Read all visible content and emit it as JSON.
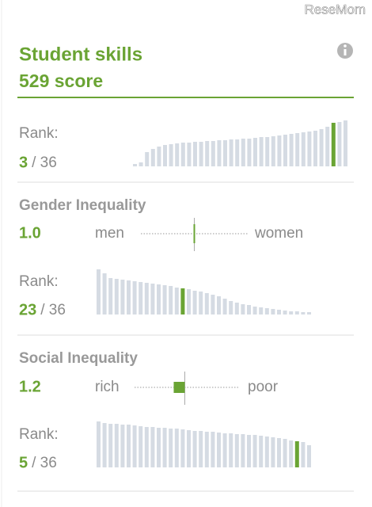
{
  "watermark": "ReseMom",
  "header": {
    "title": "Student skills",
    "score": "529 score"
  },
  "bar_color": "#d5dbe3",
  "highlight_color": "#6aa434",
  "sections": [
    {
      "rank_label": "Rank:",
      "rank": 3,
      "rank_total": "/ 36",
      "highlight": 33,
      "bars": [
        3,
        5,
        18,
        22,
        25,
        27,
        28,
        29,
        30,
        30,
        31,
        31,
        32,
        32,
        33,
        33,
        34,
        34,
        35,
        35,
        36,
        37,
        37,
        38,
        39,
        40,
        41,
        42,
        43,
        44,
        45,
        47,
        50,
        55,
        56,
        58
      ]
    },
    {
      "title": "Gender Inequality",
      "index": {
        "value": 1.0,
        "label": "1.0"
      },
      "low_label": "men",
      "high_label": "women",
      "rank_label": "Rank:",
      "rank": 23,
      "rank_total": "/ 36",
      "highlight": 14,
      "bars": [
        57,
        52,
        46,
        45,
        44,
        43,
        42,
        41,
        40,
        39,
        38,
        37,
        36,
        34,
        33,
        32,
        30,
        29,
        27,
        25,
        23,
        20,
        17,
        15,
        13,
        12,
        10,
        9,
        8,
        7,
        6,
        5,
        4,
        4,
        3,
        3
      ]
    },
    {
      "title": "Social Inequality",
      "index": {
        "value": 1.2,
        "label": "1.2"
      },
      "low_label": "rich",
      "high_label": "poor",
      "rank_label": "Rank:",
      "rank": 5,
      "rank_total": "/ 36",
      "highlight": 33,
      "bars": [
        58,
        56,
        55,
        55,
        54,
        54,
        53,
        52,
        51,
        51,
        50,
        50,
        49,
        49,
        48,
        47,
        46,
        46,
        45,
        45,
        44,
        43,
        43,
        42,
        42,
        41,
        41,
        40,
        39,
        38,
        37,
        36,
        34,
        33,
        32,
        28
      ]
    }
  ]
}
